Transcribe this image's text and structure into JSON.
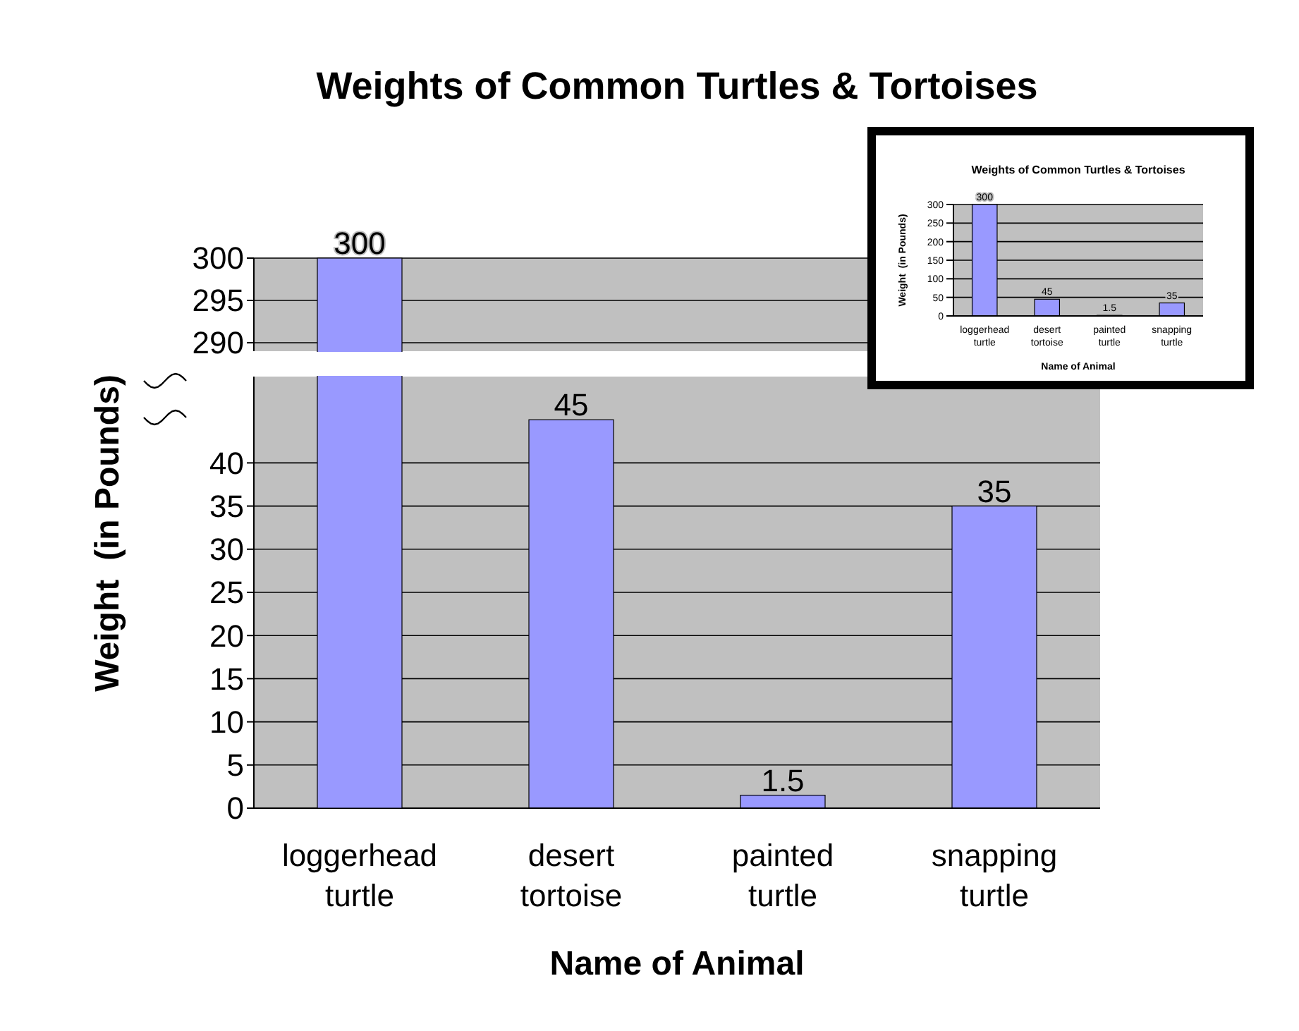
{
  "chart_data": [
    {
      "type": "bar",
      "title": "Weights of Common Turtles & Tortoises",
      "categories": [
        null,
        null,
        null,
        null
      ],
      "values": [
        300,
        null,
        null,
        null
      ],
      "color": "#9999ff",
      "ylim": [
        289,
        300
      ],
      "yticks": [
        290,
        295,
        300
      ],
      "grid": "y",
      "data_labels": true,
      "tick_labels": "y"
    },
    {
      "type": "bar",
      "xlabel": "Name of Animal",
      "ylabel": "Weight  (in Pounds)",
      "categories": [
        "loggerhead turtle",
        "desert tortoise",
        "painted turtle",
        "snapping turtle"
      ],
      "values": [
        null,
        45,
        1.5,
        35
      ],
      "color": "#9999ff",
      "ylim": [
        0,
        50
      ],
      "yticks": [
        0,
        5,
        10,
        15,
        20,
        25,
        30,
        35,
        40
      ],
      "grid": "y",
      "data_labels": true
    },
    {
      "type": "bar",
      "title": "Weights of Common Turtles & Tortoises",
      "xlabel": "Name of Animal",
      "ylabel": "Weight  (in Pounds)",
      "categories": [
        "loggerhead turtle",
        "desert tortoise",
        "painted turtle",
        "snapping turtle"
      ],
      "values": [
        300,
        45,
        1.5,
        35
      ],
      "color": "#9999ff",
      "ylim": [
        0,
        300
      ],
      "yticks": [
        0,
        50,
        100,
        150,
        200,
        250,
        300
      ],
      "grid": "y",
      "data_labels": true
    }
  ]
}
